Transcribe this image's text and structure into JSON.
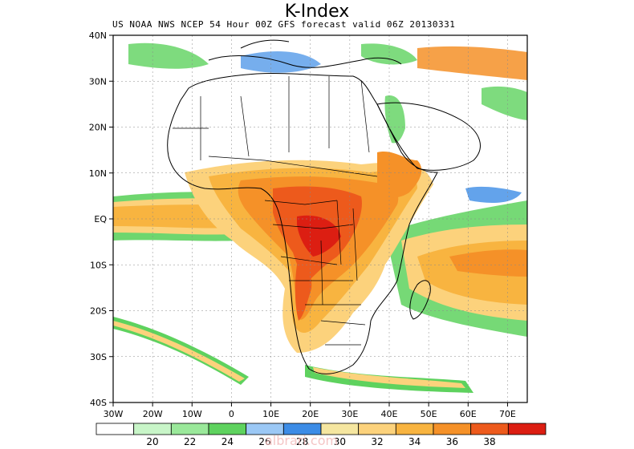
{
  "header": {
    "title": "K-Index",
    "subtitle": "US NOAA NWS NCEP 54 Hour 00Z GFS forecast valid 06Z 20130331"
  },
  "map": {
    "lon_range": [
      -30,
      75
    ],
    "lat_range": [
      -40,
      40
    ],
    "lon_ticks": [
      "30W",
      "20W",
      "10W",
      "0",
      "10E",
      "20E",
      "30E",
      "40E",
      "50E",
      "60E",
      "70E"
    ],
    "lat_ticks": [
      "40N",
      "30N",
      "20N",
      "10N",
      "EQ",
      "10S",
      "20S",
      "30S",
      "40S"
    ],
    "contour_colors": [
      "#ffffff",
      "#c8f5c8",
      "#9ae89a",
      "#5ed25e",
      "#9bc8f5",
      "#3c8ce6",
      "#f5e6a0",
      "#fcd27c",
      "#f8b440",
      "#f59128",
      "#ed5a1c",
      "#dc1e12"
    ]
  },
  "legend": {
    "labels": [
      "20",
      "22",
      "24",
      "26",
      "28",
      "30",
      "32",
      "34",
      "36",
      "38"
    ]
  },
  "watermark": "albrari.com"
}
